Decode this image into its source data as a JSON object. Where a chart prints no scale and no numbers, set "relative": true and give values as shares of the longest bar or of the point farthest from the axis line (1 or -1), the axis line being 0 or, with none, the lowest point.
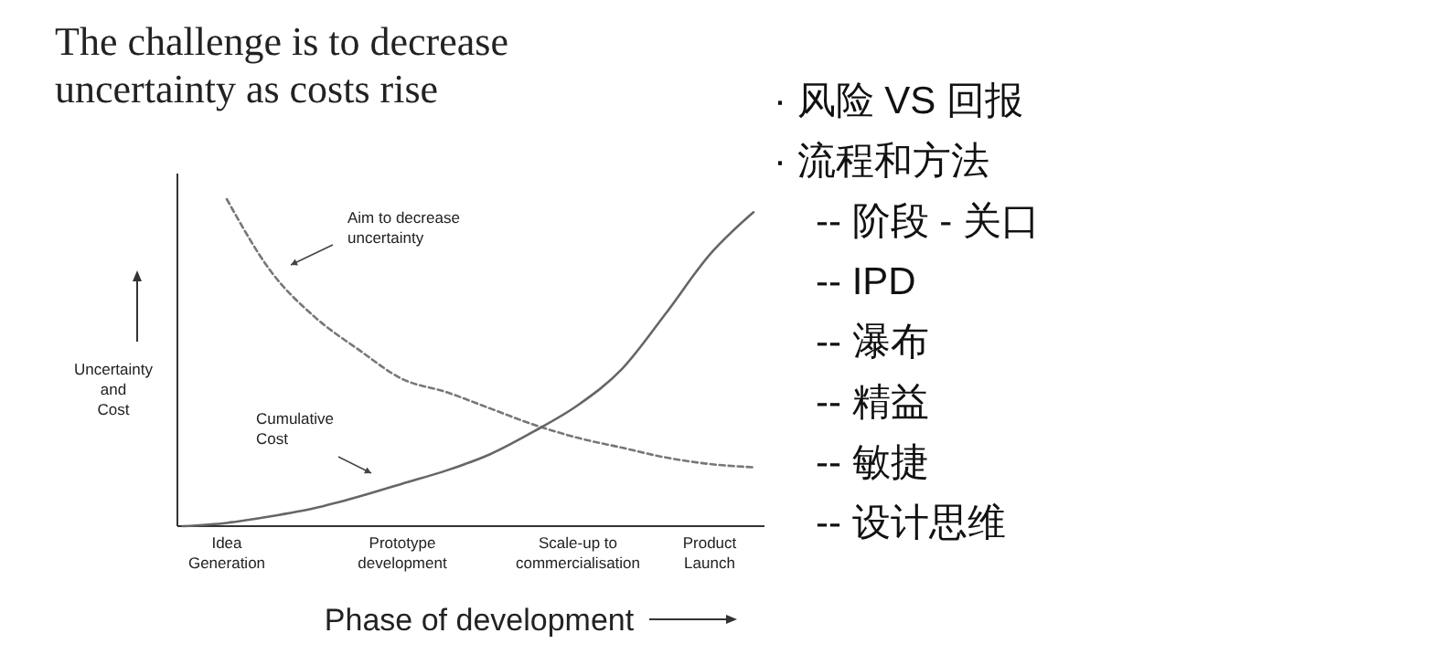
{
  "chart_data": [
    {
      "type": "line",
      "title": "The challenge is to decrease\nuncertainty as costs rise",
      "xlabel": "Phase of development",
      "ylabel": "Uncertainty\nand\nCost",
      "relative": true,
      "tick_labels": "x",
      "categories": [
        null,
        "Idea\nGeneration",
        null,
        null,
        null,
        "Prototype\ndevelopment",
        null,
        null,
        null,
        "Scale-up to\ncommercialisation",
        null,
        null,
        "Product\nLaunch",
        null
      ],
      "series": [
        {
          "color": "#777777",
          "line_style": "dashed",
          "values": [
            null,
            1.0,
            0.78,
            0.64,
            0.54,
            0.45,
            0.41,
            0.36,
            0.31,
            0.27,
            0.24,
            0.21,
            0.19,
            0.18
          ]
        },
        {
          "color": "#666666",
          "line_style": "solid",
          "values": [
            0,
            0.01,
            0.03,
            0.055,
            0.09,
            0.13,
            0.17,
            0.22,
            0.29,
            0.37,
            0.48,
            0.65,
            0.83,
            0.96
          ]
        }
      ],
      "annotations": [
        "Aim to decrease\nuncertainty",
        "Cumulative\nCost"
      ]
    },
    {
      "type": "other",
      "annotations": [
        "· 风险 VS 回报",
        "· 流程和方法",
        "-- 阶段 - 关口",
        "-- IPD",
        "-- 瀑布",
        "-- 精益",
        "-- 敏捷",
        "-- 设计思维"
      ]
    }
  ]
}
